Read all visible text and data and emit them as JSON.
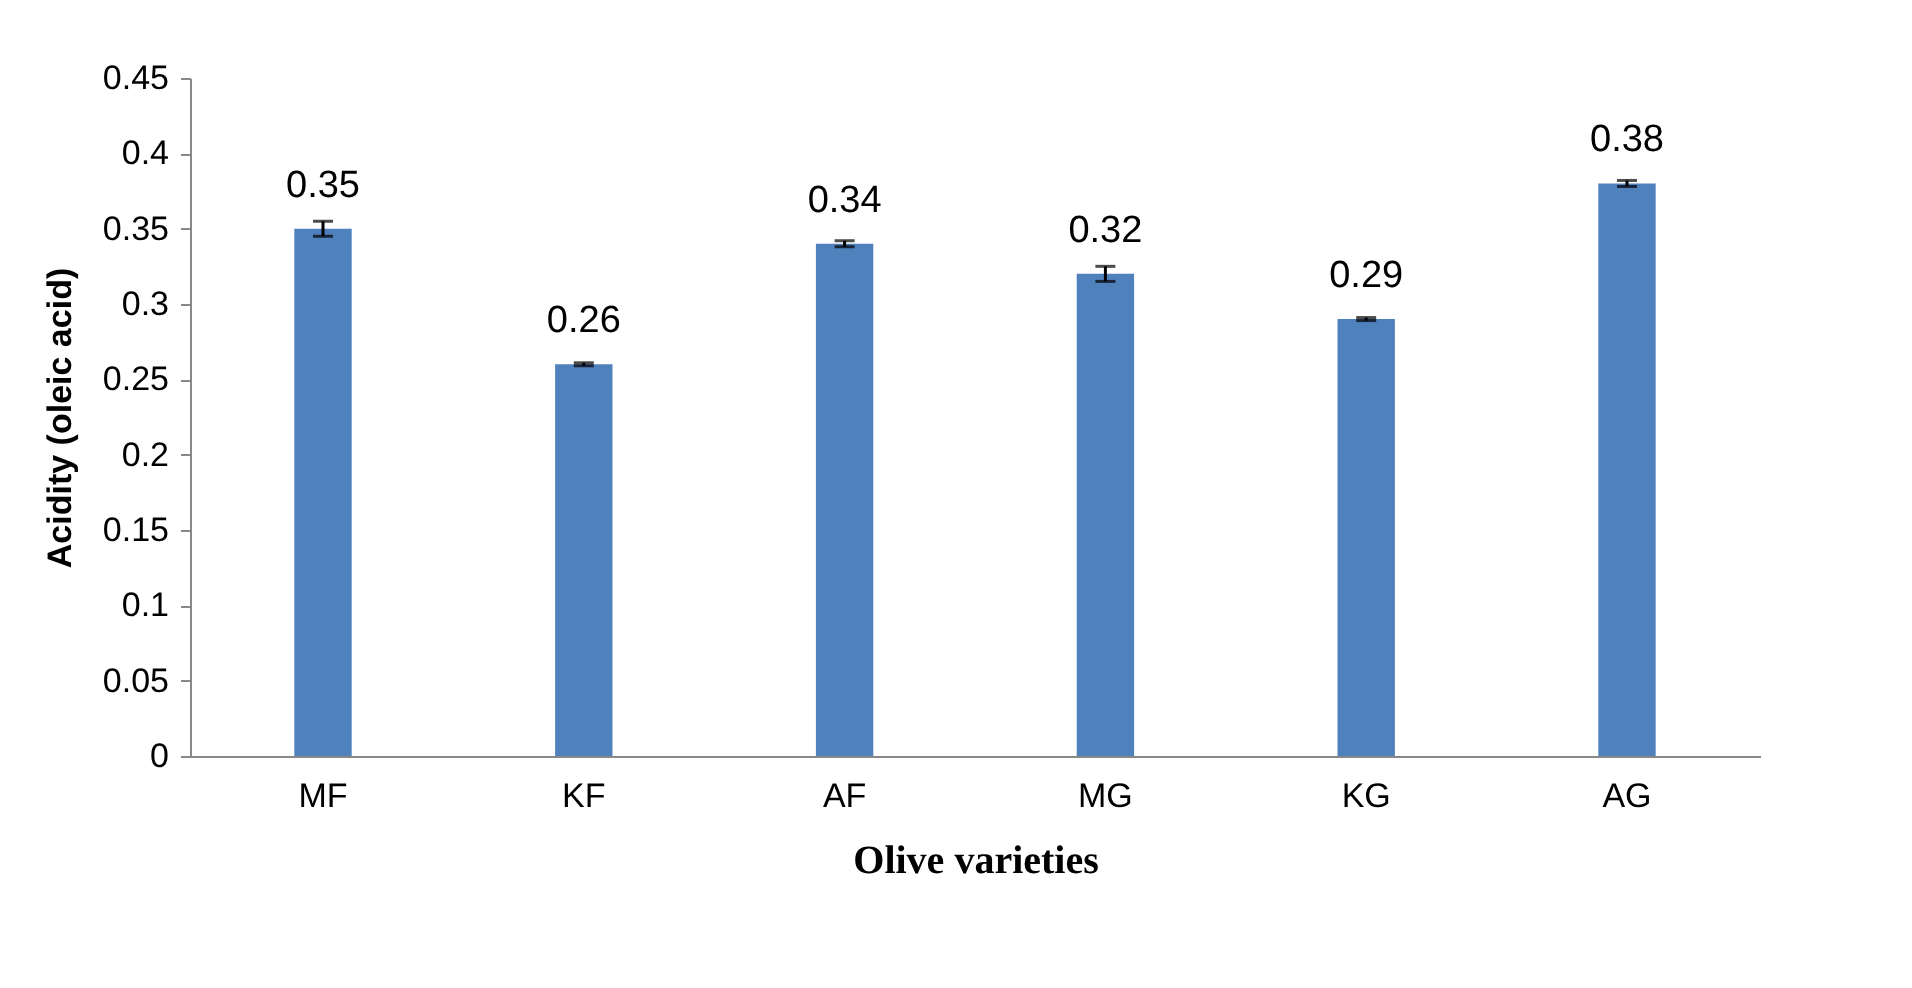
{
  "chart_data": {
    "type": "bar",
    "xlabel": "Olive varieties",
    "ylabel": "Acidity (oleic acid)",
    "categories": [
      "MF",
      "KF",
      "AF",
      "MG",
      "KG",
      "AG"
    ],
    "values": [
      0.35,
      0.26,
      0.34,
      0.32,
      0.29,
      0.38
    ],
    "errors": [
      0.005,
      0.001,
      0.002,
      0.005,
      0.001,
      0.002
    ],
    "color": "#4f81bd",
    "ylim": [
      0,
      0.45
    ],
    "yticks": [
      0,
      0.05,
      0.1,
      0.15,
      0.2,
      0.25,
      0.3,
      0.35,
      0.4,
      0.45
    ],
    "data_labels": true,
    "grid": false
  }
}
